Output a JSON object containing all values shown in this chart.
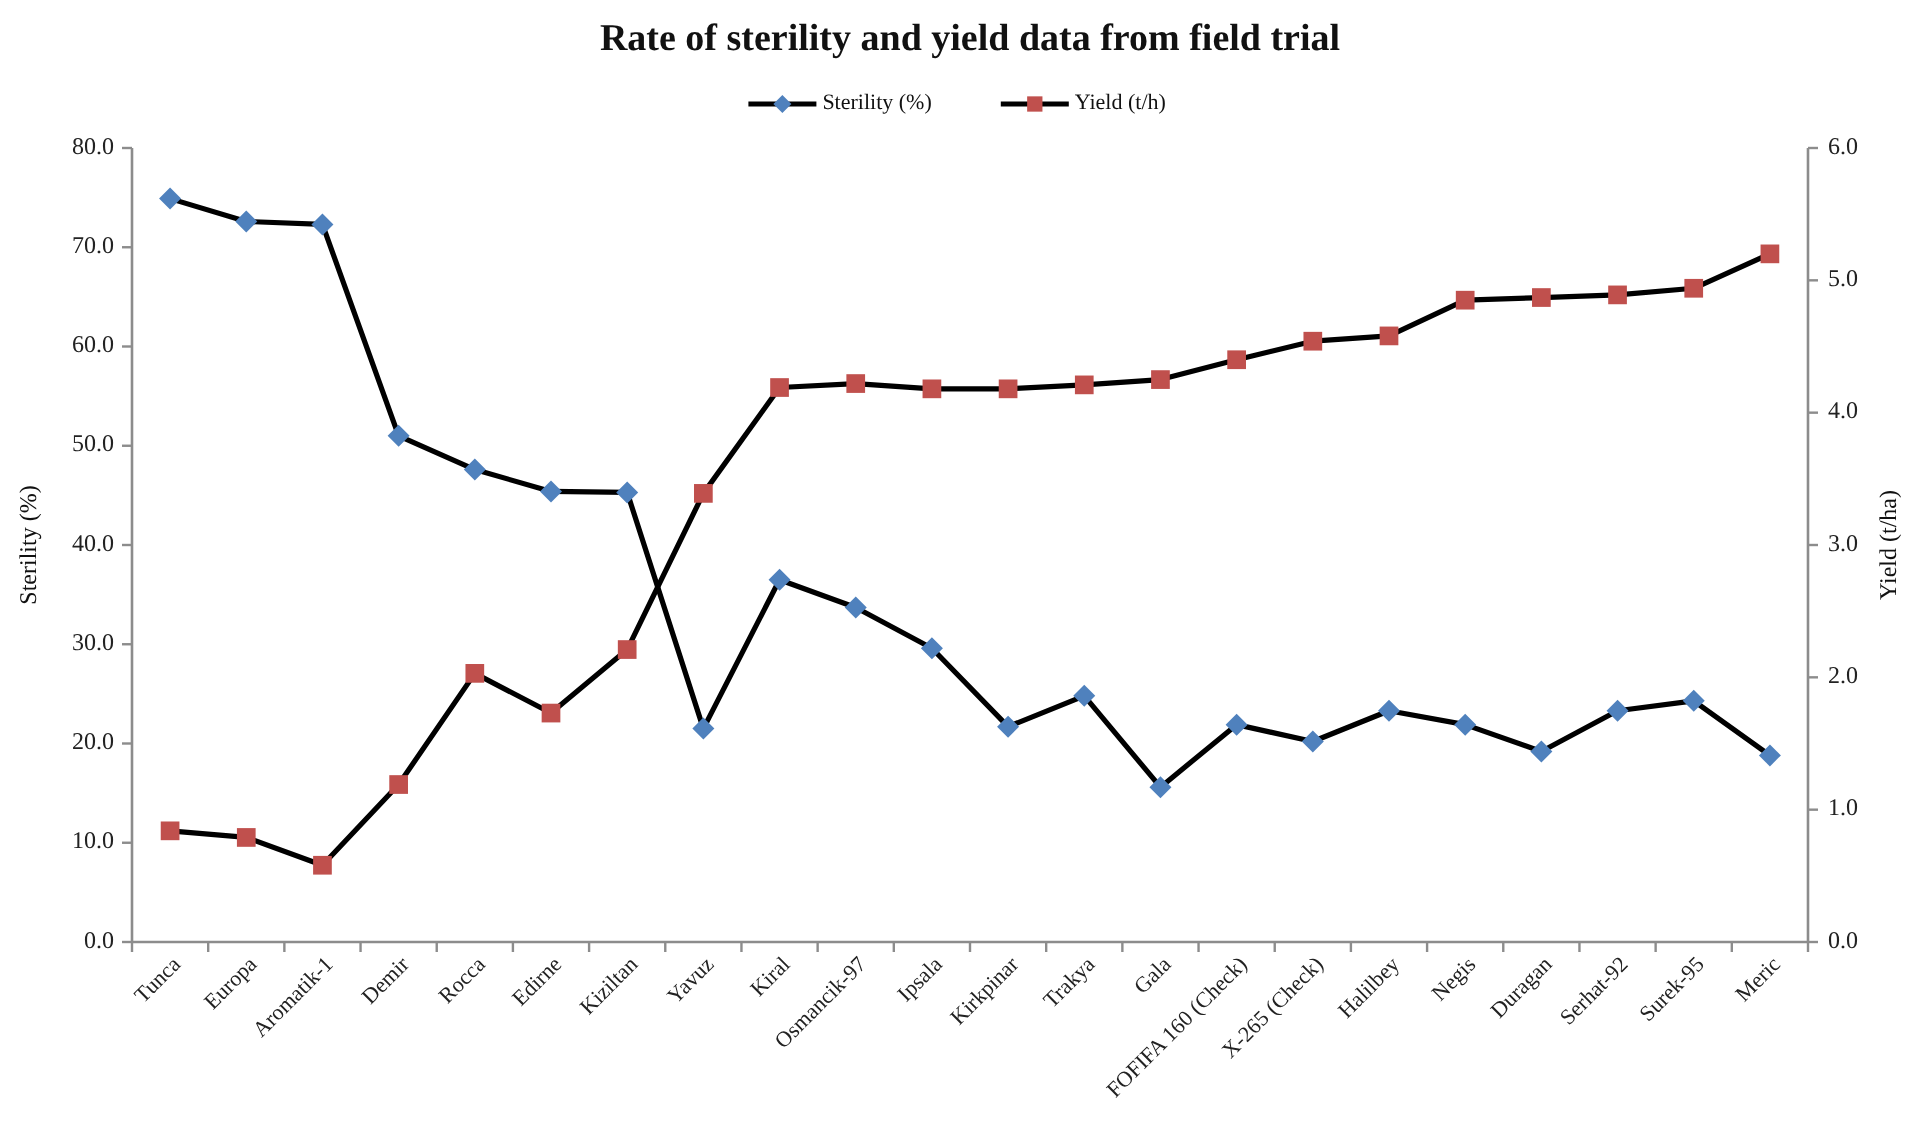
{
  "chart_data": {
    "type": "line",
    "title": "Rate of sterility and yield data from field trial",
    "ylabel": "Sterility (%)",
    "y2label": "Yield (t/ha)",
    "categories": [
      "Tunca",
      "Europa",
      "Aromatik-1",
      "Demir",
      "Rocca",
      "Edirne",
      "Kiziltan",
      "Yavuz",
      "Kiral",
      "Osmancik-97",
      "Ipsala",
      "Kirkpinar",
      "Trakya",
      "Gala",
      "FOFIFA 160 (Check)",
      "X-265 (Check)",
      "Halilbey",
      "Negis",
      "Duragan",
      "Serhat-92",
      "Surek-95",
      "Meric"
    ],
    "series": [
      {
        "name": "Sterility (%)",
        "color": "#4f81bd",
        "marker": "diamond",
        "values": [
          74.9,
          72.6,
          72.3,
          51.0,
          47.6,
          45.4,
          45.3,
          21.5,
          36.5,
          33.7,
          29.6,
          21.7,
          24.8,
          15.6,
          21.9,
          20.2,
          23.3,
          21.9,
          19.2,
          23.3,
          24.3,
          18.8
        ]
      },
      {
        "name": "Yield (t/h)",
        "color": "#c0504d",
        "marker": "square",
        "axis": "y2",
        "values": [
          0.84,
          0.79,
          0.58,
          1.19,
          2.03,
          1.73,
          2.21,
          3.39,
          4.19,
          4.22,
          4.18,
          4.18,
          4.21,
          4.25,
          4.4,
          4.54,
          4.58,
          4.85,
          4.87,
          4.89,
          4.94,
          5.2
        ]
      }
    ],
    "ylim": [
      0,
      80
    ],
    "yticks": [
      {
        "value": 0,
        "label": "0.0"
      },
      {
        "value": 10,
        "label": "10.0"
      },
      {
        "value": 20,
        "label": "20.0"
      },
      {
        "value": 30,
        "label": "30.0"
      },
      {
        "value": 40,
        "label": "40.0"
      },
      {
        "value": 50,
        "label": "50.0"
      },
      {
        "value": 60,
        "label": "60.0"
      },
      {
        "value": 70,
        "label": "70.0"
      },
      {
        "value": 80,
        "label": "80.0"
      }
    ],
    "y2lim": [
      0,
      6
    ],
    "y2ticks": [
      {
        "value": 0,
        "label": "0.0"
      },
      {
        "value": 1,
        "label": "1.0"
      },
      {
        "value": 2,
        "label": "2.0"
      },
      {
        "value": 3,
        "label": "3.0"
      },
      {
        "value": 4,
        "label": "4.0"
      },
      {
        "value": 5,
        "label": "5.0"
      },
      {
        "value": 6,
        "label": "6.0"
      }
    ],
    "legend": "top",
    "line_style": "solid"
  }
}
